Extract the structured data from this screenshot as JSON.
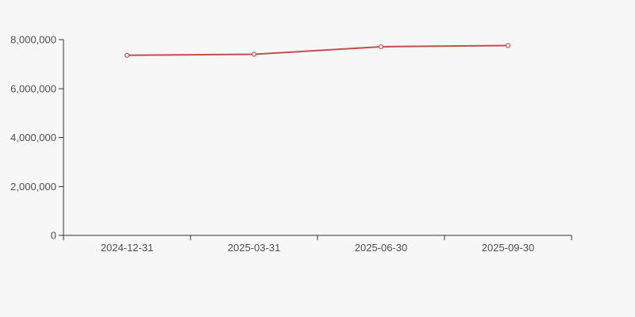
{
  "chart_data": {
    "type": "line",
    "title": "",
    "xlabel": "",
    "ylabel": "",
    "categories": [
      "2024-12-31",
      "2025-03-31",
      "2025-06-30",
      "2025-09-30"
    ],
    "series": [
      {
        "name": "",
        "values": [
          7360000,
          7400000,
          7710000,
          7760000
        ]
      }
    ],
    "ylim": [
      0,
      8000000
    ],
    "yticks": [
      0,
      2000000,
      4000000,
      6000000,
      8000000
    ],
    "grid": false,
    "legend_position": "none",
    "colors": {
      "background": "#f7f7f7",
      "line": "#c0504d",
      "marker_fill": "#ffffff",
      "axis": "#333333",
      "tick_label": "#4d4d4d"
    }
  }
}
